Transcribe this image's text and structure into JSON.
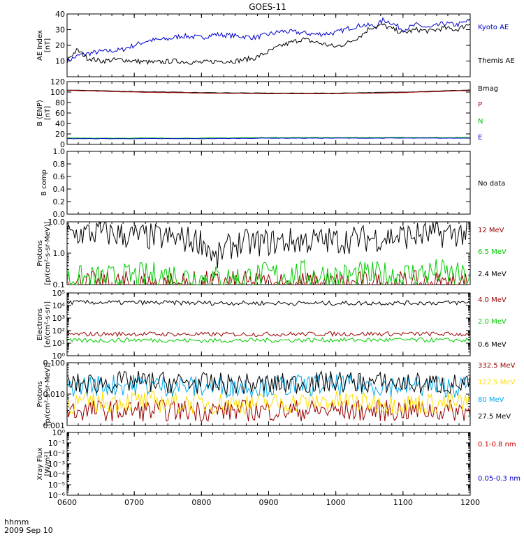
{
  "figure": {
    "title": "GOES-11",
    "footer_line1": "hhmm",
    "footer_line2": "2009 Sep 10"
  },
  "chart_data": [
    {
      "id": "ae",
      "type": "line",
      "ylabel": [
        "AE Index",
        "[nT]"
      ],
      "ylim": [
        0,
        40
      ],
      "scale": "linear",
      "yticks": [
        {
          "v": 10,
          "label": "10"
        },
        {
          "v": 20,
          "label": "20"
        },
        {
          "v": 30,
          "label": "30"
        },
        {
          "v": 40,
          "label": "40"
        }
      ],
      "series": [
        {
          "name": "Kyoto AE",
          "color": "#0000cc",
          "x": [
            6.0,
            6.2,
            6.5,
            6.8,
            7.0,
            7.2,
            7.5,
            7.7,
            8.0,
            8.2,
            8.5,
            8.8,
            9.0,
            9.2,
            9.5,
            9.7,
            10.0,
            10.2,
            10.4,
            10.6,
            10.7,
            10.8,
            11.0,
            11.2,
            11.4,
            11.6,
            11.8,
            12.0
          ],
          "y": [
            10,
            14,
            16,
            17,
            20,
            23,
            24,
            26,
            25,
            27,
            26,
            25,
            27,
            29,
            28,
            27,
            28,
            31,
            33,
            32,
            36,
            35,
            30,
            33,
            31,
            34,
            33,
            36
          ]
        },
        {
          "name": "Themis AE",
          "color": "#000000",
          "x": [
            6.0,
            6.15,
            6.3,
            6.5,
            6.8,
            7.0,
            7.3,
            7.6,
            8.0,
            8.3,
            8.5,
            8.8,
            9.0,
            9.2,
            9.5,
            9.7,
            10.0,
            10.2,
            10.4,
            10.5,
            10.7,
            10.8,
            11.0,
            11.2,
            11.4,
            11.6,
            11.8,
            12.0
          ],
          "y": [
            11,
            17,
            12,
            10,
            11,
            10,
            9,
            10,
            9,
            10,
            10,
            12,
            16,
            20,
            24,
            22,
            19,
            22,
            27,
            31,
            33,
            31,
            28,
            30,
            29,
            31,
            30,
            34
          ]
        }
      ]
    },
    {
      "id": "b",
      "type": "line",
      "ylabel": [
        "B (ENP)",
        "[nT]"
      ],
      "ylim": [
        0,
        120
      ],
      "scale": "linear",
      "yticks": [
        {
          "v": 0,
          "label": "0"
        },
        {
          "v": 20,
          "label": "20"
        },
        {
          "v": 40,
          "label": "40"
        },
        {
          "v": 60,
          "label": "60"
        },
        {
          "v": 80,
          "label": "80"
        },
        {
          "v": 100,
          "label": "100"
        },
        {
          "v": 120,
          "label": "120"
        }
      ],
      "series": [
        {
          "name": "Bmag",
          "color": "#000000",
          "x": [
            6,
            7,
            8,
            9,
            10,
            11,
            12
          ],
          "y": [
            104,
            101,
            99,
            98,
            98,
            100,
            104
          ]
        },
        {
          "name": "P",
          "color": "#aa0000",
          "x": [
            6,
            7,
            8,
            9,
            10,
            11,
            12
          ],
          "y": [
            103,
            100,
            98,
            97,
            97,
            99,
            103
          ]
        },
        {
          "name": "N",
          "color": "#00bb00",
          "x": [
            6,
            7,
            8,
            9,
            10,
            11,
            12
          ],
          "y": [
            12,
            12,
            12,
            13,
            13,
            13,
            13
          ]
        },
        {
          "name": "E",
          "color": "#0000cc",
          "x": [
            6,
            7,
            8,
            9,
            10,
            11,
            12
          ],
          "y": [
            11,
            11,
            11,
            12,
            12,
            12,
            12
          ]
        }
      ]
    },
    {
      "id": "bcomp",
      "type": "line",
      "ylabel": [
        "B comp"
      ],
      "ylim": [
        0,
        1
      ],
      "scale": "linear",
      "yticks": [
        {
          "v": 0,
          "label": "0.0"
        },
        {
          "v": 0.2,
          "label": "0.2"
        },
        {
          "v": 0.4,
          "label": "0.4"
        },
        {
          "v": 0.6,
          "label": "0.6"
        },
        {
          "v": 0.8,
          "label": "0.8"
        },
        {
          "v": 1.0,
          "label": "1.0"
        }
      ],
      "status": "No data",
      "series": []
    },
    {
      "id": "protons_low",
      "type": "line",
      "ylabel": [
        "Protons",
        "[p/(cm²-s-sr-MeV)]"
      ],
      "ylim": [
        0.1,
        10
      ],
      "scale": "log",
      "yticks": [
        {
          "v": 0.1,
          "label": "0.1"
        },
        {
          "v": 1,
          "label": "1.0"
        },
        {
          "v": 10,
          "label": "10.0"
        }
      ],
      "series": [
        {
          "name": "12 MeV",
          "color": "#990000",
          "x": [
            6.5,
            7.0,
            7.5,
            8.0,
            8.5,
            9.0,
            9.5,
            10.0,
            10.5,
            11.0,
            11.5,
            12.0
          ],
          "y": [
            0.1,
            0.1,
            0.1,
            0.1,
            0.1,
            0.1,
            0.1,
            0.1,
            0.1,
            0.1,
            0.1,
            0.1
          ]
        },
        {
          "name": "6.5 MeV",
          "color": "#00cc00",
          "x": [
            6.5,
            7.0,
            7.5,
            8.0,
            8.5,
            9.0,
            9.5,
            10.0,
            10.5,
            11.0,
            11.5,
            12.0
          ],
          "y": [
            0.15,
            0.18,
            0.2,
            0.16,
            0.15,
            0.2,
            0.22,
            0.18,
            0.2,
            0.2,
            0.25,
            0.15
          ]
        },
        {
          "name": "2.4 MeV",
          "color": "#000000",
          "x": [
            6.0,
            6.5,
            7.0,
            7.5,
            8.0,
            8.2,
            8.5,
            9.0,
            9.5,
            10.0,
            10.5,
            11.0,
            11.5,
            12.0
          ],
          "y": [
            4.0,
            4.5,
            3.5,
            3.0,
            2.5,
            0.5,
            2.0,
            2.2,
            2.5,
            2.5,
            3.0,
            3.5,
            4.0,
            4.5
          ]
        }
      ]
    },
    {
      "id": "electrons",
      "type": "line",
      "ylabel": [
        "Electrons",
        "[e/(cm²-s-sr)]"
      ],
      "ylim": [
        1,
        100000
      ],
      "scale": "log",
      "yticks": [
        {
          "v": 1,
          "label": "10⁰"
        },
        {
          "v": 10,
          "label": "10¹"
        },
        {
          "v": 100,
          "label": "10²"
        },
        {
          "v": 1000,
          "label": "10³"
        },
        {
          "v": 10000,
          "label": "10⁴"
        },
        {
          "v": 100000,
          "label": "10⁵"
        }
      ],
      "series": [
        {
          "name": "4.0 MeV",
          "color": "#990000",
          "x": [
            6,
            7,
            8,
            9,
            10,
            11,
            12
          ],
          "y": [
            50,
            55,
            50,
            52,
            55,
            55,
            52
          ]
        },
        {
          "name": "2.0 MeV",
          "color": "#00cc00",
          "x": [
            6,
            7,
            8,
            9,
            10,
            11,
            12
          ],
          "y": [
            15,
            18,
            16,
            17,
            18,
            18,
            17
          ]
        },
        {
          "name": "0.6 MeV",
          "color": "#000000",
          "x": [
            6,
            7,
            8,
            9,
            10,
            11,
            12
          ],
          "y": [
            18000,
            17000,
            16000,
            15500,
            15000,
            16000,
            17000
          ]
        }
      ]
    },
    {
      "id": "protons_high",
      "type": "line",
      "ylabel": [
        "Protons",
        "[p/(cm²-s-sr-MeV)]"
      ],
      "ylim": [
        0.001,
        0.1
      ],
      "scale": "log",
      "yticks": [
        {
          "v": 0.001,
          "label": "0.001"
        },
        {
          "v": 0.01,
          "label": "0.010"
        },
        {
          "v": 0.1,
          "label": "0.100"
        }
      ],
      "series": [
        {
          "name": "332.5 MeV",
          "color": "#990000",
          "x": [
            6,
            7,
            8,
            9,
            10,
            11,
            12
          ],
          "y": [
            0.003,
            0.003,
            0.003,
            0.003,
            0.003,
            0.003,
            0.003
          ]
        },
        {
          "name": "122.5 MeV",
          "color": "#ffdd00",
          "x": [
            6,
            7,
            8,
            9,
            10,
            11,
            12
          ],
          "y": [
            0.005,
            0.006,
            0.005,
            0.005,
            0.006,
            0.005,
            0.005
          ]
        },
        {
          "name": "80 MeV",
          "color": "#00aaee",
          "x": [
            6,
            7,
            8,
            9,
            10,
            11,
            12
          ],
          "y": [
            0.018,
            0.02,
            0.017,
            0.018,
            0.02,
            0.018,
            0.017
          ]
        },
        {
          "name": "27.5 MeV",
          "color": "#000000",
          "x": [
            6,
            7,
            8,
            9,
            10,
            11,
            12
          ],
          "y": [
            0.02,
            0.025,
            0.022,
            0.02,
            0.025,
            0.022,
            0.02
          ]
        }
      ]
    },
    {
      "id": "xray",
      "type": "line",
      "ylabel": [
        "Xray Flux",
        "[W/m²]"
      ],
      "ylim": [
        1e-06,
        1
      ],
      "scale": "log",
      "yticks": [
        {
          "v": 1e-06,
          "label": "10⁻⁶"
        },
        {
          "v": 1e-05,
          "label": "10⁻⁵"
        },
        {
          "v": 0.0001,
          "label": "10⁻⁴"
        },
        {
          "v": 0.001,
          "label": "10⁻³"
        },
        {
          "v": 0.01,
          "label": "10⁻²"
        },
        {
          "v": 0.1,
          "label": "10⁻¹"
        },
        {
          "v": 1,
          "label": "10⁰"
        }
      ],
      "legend_only": [
        {
          "name": "0.1-0.8 nm",
          "color": "#cc0000"
        },
        {
          "name": "0.05-0.3 nm",
          "color": "#0000cc"
        }
      ],
      "series": []
    }
  ],
  "xaxis": {
    "range": [
      6,
      12
    ],
    "ticks": [
      {
        "v": 6,
        "label": "0600"
      },
      {
        "v": 7,
        "label": "0700"
      },
      {
        "v": 8,
        "label": "0800"
      },
      {
        "v": 9,
        "label": "0900"
      },
      {
        "v": 10,
        "label": "1000"
      },
      {
        "v": 11,
        "label": "1100"
      },
      {
        "v": 12,
        "label": "1200"
      }
    ]
  }
}
